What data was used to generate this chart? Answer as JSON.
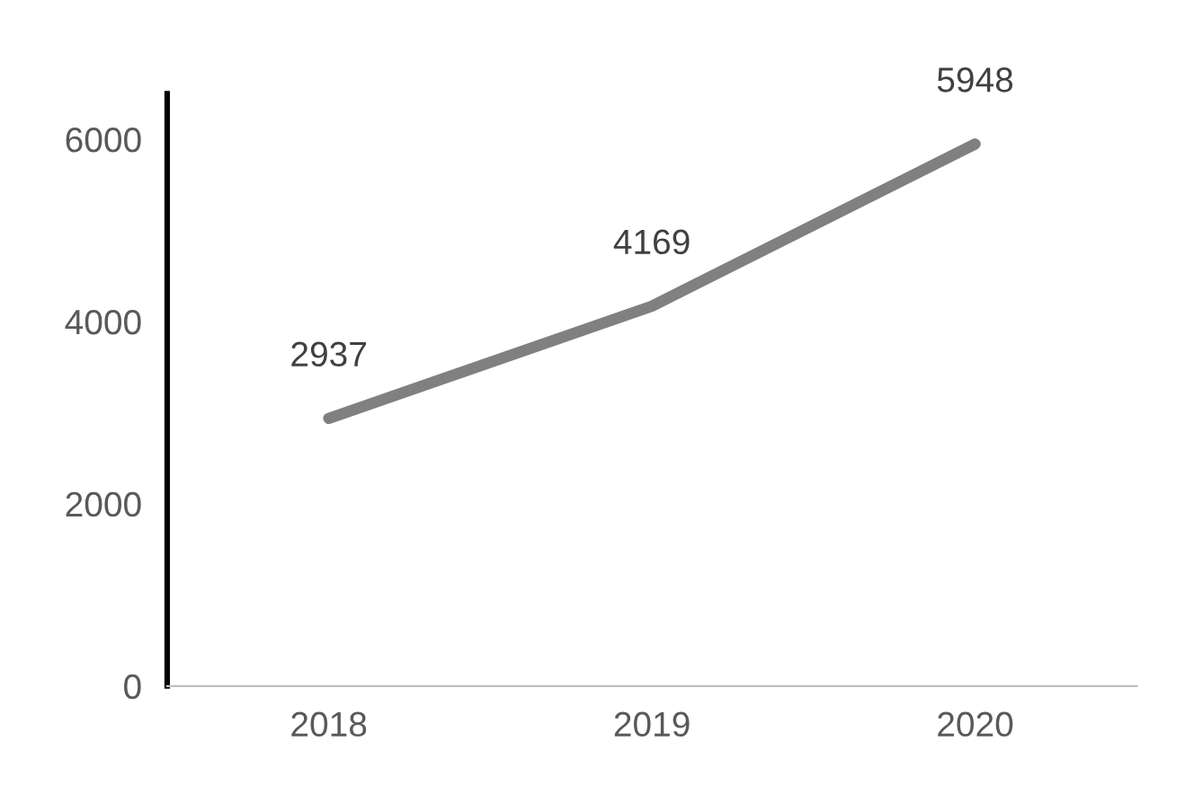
{
  "chart_data": {
    "type": "line",
    "categories": [
      "2018",
      "2019",
      "2020"
    ],
    "series": [
      {
        "color": "#808080",
        "values": [
          2937,
          4169,
          5948
        ]
      }
    ],
    "ylim": [
      0,
      6500
    ],
    "yticks": [
      0,
      2000,
      4000,
      6000
    ],
    "grid": false,
    "legend": false,
    "marker": "none",
    "line_style": "solid",
    "data_labels": true
  }
}
